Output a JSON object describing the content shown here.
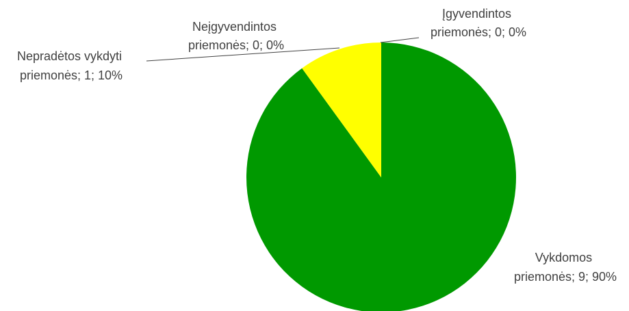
{
  "chart_data": {
    "type": "pie",
    "title": "",
    "slices": [
      {
        "name": "Įgyvendintos priemonės",
        "label_line1": "Įgyvendintos",
        "label_line2": "priemonės; 0; 0%",
        "value": 0,
        "percent": 0,
        "color": "#00B050"
      },
      {
        "name": "Vykdomos priemonės",
        "label_line1": "Vykdomos",
        "label_line2": "priemonės; 9; 90%",
        "value": 9,
        "percent": 90,
        "color": "#009900"
      },
      {
        "name": "Nepradėtos vykdyti priemonės",
        "label_line1": "Nepradėtos vykdyti",
        "label_line2": "priemonės; 1; 10%",
        "value": 1,
        "percent": 10,
        "color": "#FFFF00"
      },
      {
        "name": "Neįgyvendintos priemonės",
        "label_line1": "Neįgyvendintos",
        "label_line2": "priemonės; 0; 0%",
        "value": 0,
        "percent": 0,
        "color": "#FF0000"
      }
    ],
    "legend": "none"
  }
}
